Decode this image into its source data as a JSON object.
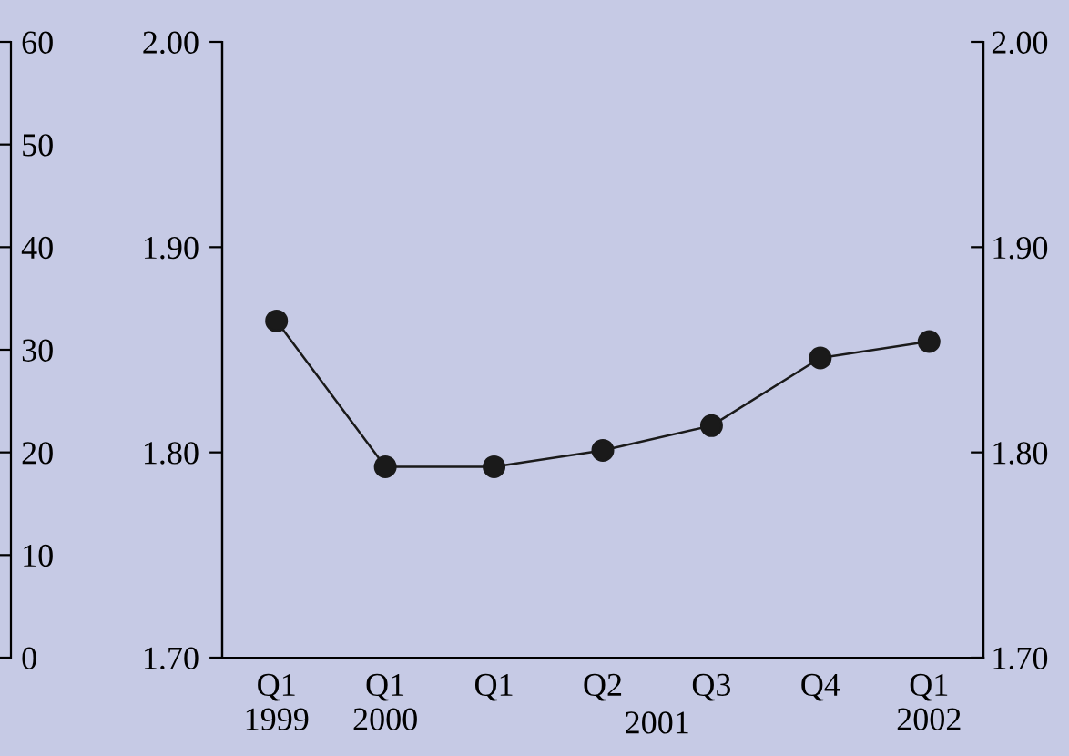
{
  "chart_data": {
    "type": "line",
    "categories": [
      "Q1\n1999",
      "Q1\n2000",
      "Q1",
      "Q2",
      "Q3",
      "Q4",
      "Q1\n2002"
    ],
    "series": [
      {
        "color": "#1a1a1a",
        "values": [
          1.864,
          1.793,
          1.793,
          1.801,
          1.813,
          1.846,
          1.854
        ]
      }
    ],
    "annotations": [
      "2001"
    ],
    "ylim": [
      1.7,
      2.0
    ],
    "yticks": [
      {
        "value": 1.7,
        "label": "1.70"
      },
      {
        "value": 1.8,
        "label": "1.80"
      },
      {
        "value": 1.9,
        "label": "1.90"
      },
      {
        "value": 2.0,
        "label": "2.00"
      }
    ],
    "y2lim": [
      1.7,
      2.0
    ],
    "y2ticks": [
      {
        "value": 1.7,
        "label": "1.70"
      },
      {
        "value": 1.8,
        "label": "1.80"
      },
      {
        "value": 1.9,
        "label": "1.90"
      },
      {
        "value": 2.0,
        "label": "2.00"
      }
    ],
    "y3lim": [
      0,
      60
    ],
    "y3ticks": [
      0,
      10,
      20,
      30,
      40,
      50,
      60
    ],
    "marker": "circle",
    "line_style": "solid",
    "grid": false,
    "legend": false
  }
}
